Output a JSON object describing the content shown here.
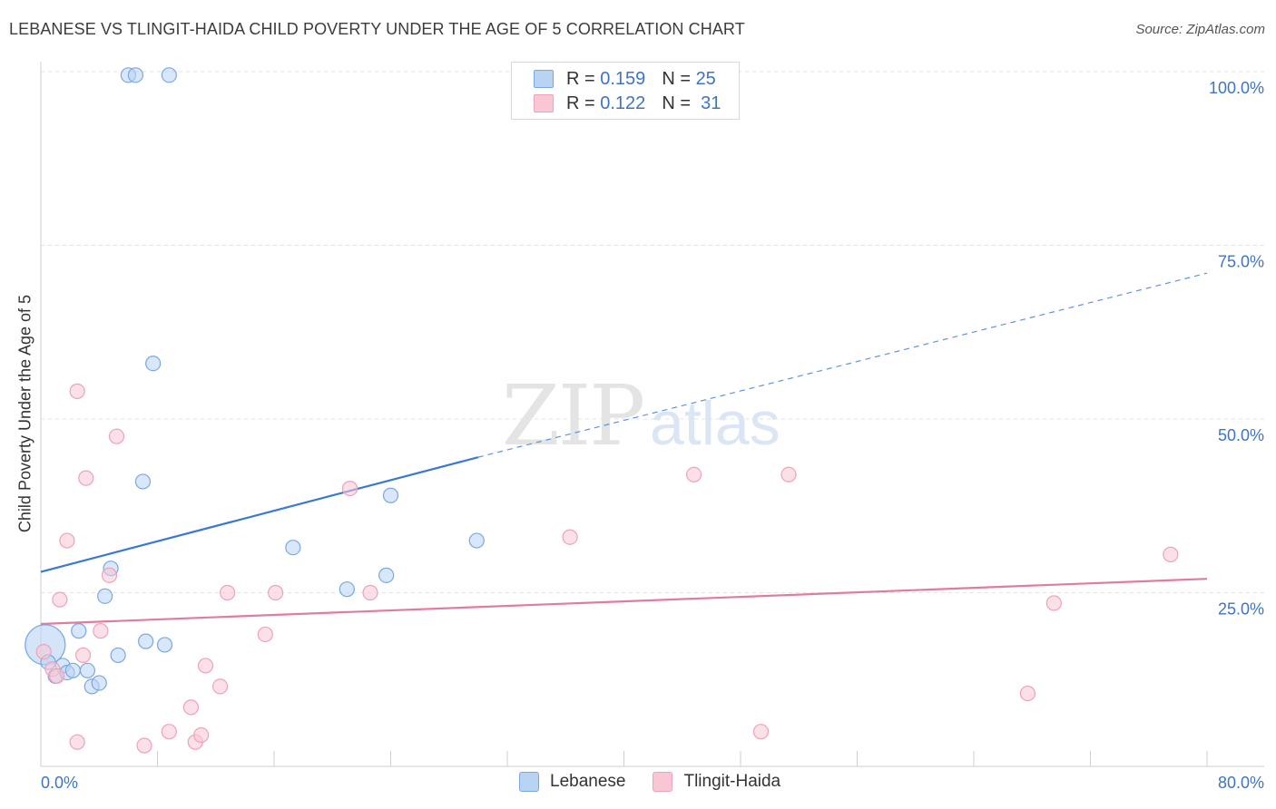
{
  "header": {
    "title": "LEBANESE VS TLINGIT-HAIDA CHILD POVERTY UNDER THE AGE OF 5 CORRELATION CHART",
    "source": "Source: ZipAtlas.com"
  },
  "watermark": {
    "zip": "ZIP",
    "atlas": "atlas"
  },
  "legend": {
    "r_label": "R =",
    "n_label": "N =",
    "rows": [
      {
        "series": "Lebanese",
        "r": "0.159",
        "n": "25",
        "color": "#a9c8f0"
      },
      {
        "series": "Tlingit-Haida",
        "r": "0.122",
        "n": "31",
        "color": "#f6b6c8"
      }
    ]
  },
  "chart_data": {
    "type": "scatter",
    "title": "LEBANESE VS TLINGIT-HAIDA CHILD POVERTY UNDER THE AGE OF 5 CORRELATION CHART",
    "xlabel": "",
    "ylabel": "Child Poverty Under the Age of 5",
    "xlim": [
      0,
      80
    ],
    "ylim": [
      0,
      100
    ],
    "x_tick_labels": [
      "0.0%",
      "80.0%"
    ],
    "y_tick_labels": [
      "100.0%",
      "75.0%",
      "50.0%",
      "25.0%"
    ],
    "y_ticks": [
      100,
      75,
      50,
      25
    ],
    "grid": true,
    "series": [
      {
        "name": "Lebanese",
        "color": "#3a78d4",
        "fill": "#b9d3f5",
        "stroke": "#7aa7e2",
        "points": [
          [
            0.3,
            17.5
          ],
          [
            0.5,
            15.0
          ],
          [
            1.0,
            13.0
          ],
          [
            1.5,
            14.5
          ],
          [
            1.8,
            13.5
          ],
          [
            2.2,
            13.8
          ],
          [
            2.6,
            19.5
          ],
          [
            3.2,
            13.8
          ],
          [
            3.5,
            11.5
          ],
          [
            4.0,
            12.0
          ],
          [
            4.4,
            24.5
          ],
          [
            4.8,
            28.5
          ],
          [
            5.3,
            16.0
          ],
          [
            6.0,
            99.5
          ],
          [
            6.5,
            99.5
          ],
          [
            7.0,
            41.0
          ],
          [
            7.2,
            18.0
          ],
          [
            7.7,
            58.0
          ],
          [
            8.5,
            17.5
          ],
          [
            8.8,
            99.5
          ],
          [
            17.3,
            31.5
          ],
          [
            21.0,
            25.5
          ],
          [
            23.7,
            27.5
          ],
          [
            24.0,
            39.0
          ],
          [
            29.9,
            32.5
          ]
        ],
        "sizes": [
          1.5,
          0.6,
          0.5,
          0.5,
          0.5,
          0.5,
          0.5,
          0.5,
          0.5,
          0.5,
          0.5,
          0.5,
          0.5,
          0.5,
          0.5,
          0.5,
          0.5,
          0.5,
          0.5,
          0.5,
          0.5,
          0.5,
          0.5,
          0.5,
          0.5
        ],
        "trend": {
          "x0": 0,
          "y0": 28.0,
          "x1": 30,
          "y1": 44.5,
          "dashed_to_x": 80,
          "dashed_to_y": 71.0
        }
      },
      {
        "name": "Tlingit-Haida",
        "color": "#e27ba0",
        "fill": "#f9c6d4",
        "stroke": "#eea2ba",
        "points": [
          [
            0.2,
            16.5
          ],
          [
            0.8,
            14.0
          ],
          [
            1.1,
            13.0
          ],
          [
            1.3,
            24.0
          ],
          [
            1.8,
            32.5
          ],
          [
            2.5,
            3.5
          ],
          [
            2.5,
            54.0
          ],
          [
            2.9,
            16.0
          ],
          [
            3.1,
            41.5
          ],
          [
            4.1,
            19.5
          ],
          [
            4.7,
            27.5
          ],
          [
            5.2,
            47.5
          ],
          [
            7.1,
            3.0
          ],
          [
            8.8,
            5.0
          ],
          [
            10.3,
            8.5
          ],
          [
            10.6,
            3.5
          ],
          [
            11.0,
            4.5
          ],
          [
            11.3,
            14.5
          ],
          [
            12.3,
            11.5
          ],
          [
            12.8,
            25.0
          ],
          [
            15.4,
            19.0
          ],
          [
            16.1,
            25.0
          ],
          [
            21.2,
            40.0
          ],
          [
            22.6,
            25.0
          ],
          [
            36.3,
            33.0
          ],
          [
            44.8,
            42.0
          ],
          [
            49.4,
            5.0
          ],
          [
            51.3,
            42.0
          ],
          [
            67.7,
            10.5
          ],
          [
            69.5,
            23.5
          ],
          [
            77.5,
            30.5
          ]
        ],
        "sizes": [
          0.5,
          0.5,
          0.5,
          0.5,
          0.5,
          0.5,
          0.5,
          0.5,
          0.5,
          0.5,
          0.5,
          0.5,
          0.5,
          0.5,
          0.5,
          0.5,
          0.5,
          0.5,
          0.5,
          0.5,
          0.5,
          0.5,
          0.5,
          0.5,
          0.5,
          0.5,
          0.5,
          0.5,
          0.5,
          0.5,
          0.5
        ],
        "trend": {
          "x0": 0,
          "y0": 20.5,
          "x1": 80,
          "y1": 27.0
        }
      }
    ]
  }
}
